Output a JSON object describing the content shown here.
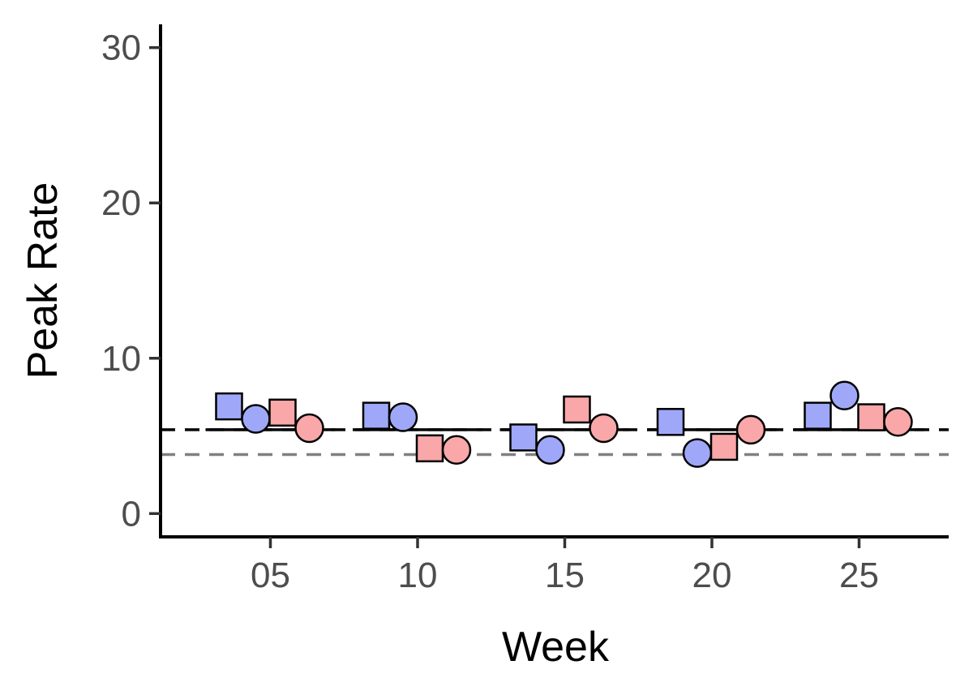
{
  "chart_data": {
    "type": "scatter",
    "xlabel": "Week",
    "ylabel": "Peak Rate",
    "categories": [
      "05",
      "10",
      "15",
      "20",
      "25"
    ],
    "ylim": [
      -1.5,
      31.5
    ],
    "y_ticks": [
      0,
      10,
      20,
      30
    ],
    "grid": false,
    "legend": "none",
    "colors": {
      "blue": "#9fa8f8",
      "pink": "#f9a7a8",
      "outline": "#000000",
      "reference_line": "#808080"
    },
    "reference_lines": [
      {
        "style": "dashed",
        "color": "#808080",
        "y": 3.8
      },
      {
        "style": "dashed",
        "color": "#000000",
        "y": 5.4
      }
    ],
    "group_means": [
      5.4,
      5.4,
      5.4,
      5.4,
      5.4
    ],
    "series": [
      {
        "shape": "square",
        "color": "blue",
        "offset_index": 0,
        "values": [
          6.9,
          6.3,
          4.9,
          5.9,
          6.3
        ]
      },
      {
        "shape": "circle",
        "color": "blue",
        "offset_index": 1,
        "values": [
          6.1,
          6.2,
          4.1,
          3.9,
          7.6
        ]
      },
      {
        "shape": "square",
        "color": "pink",
        "offset_index": 2,
        "values": [
          6.5,
          4.2,
          6.7,
          4.3,
          6.2
        ]
      },
      {
        "shape": "circle",
        "color": "pink",
        "offset_index": 3,
        "values": [
          5.5,
          4.1,
          5.5,
          5.4,
          5.9
        ]
      }
    ]
  }
}
